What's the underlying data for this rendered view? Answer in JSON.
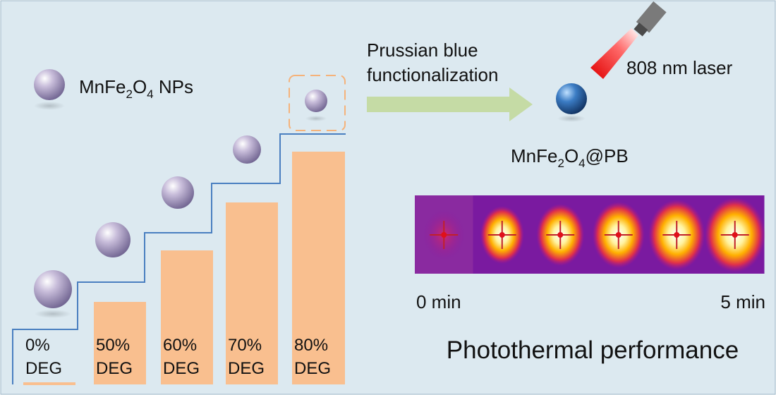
{
  "legend": {
    "parts": [
      "MnFe",
      "2",
      "O",
      "4",
      " NPs"
    ]
  },
  "arrow": {
    "lines": [
      "Prussian blue",
      "functionalization"
    ]
  },
  "laser": {
    "label": "808 nm laser"
  },
  "product": {
    "parts": [
      "MnFe",
      "2",
      "O",
      "4",
      "@PB"
    ]
  },
  "bars": [
    {
      "lines": [
        "0%",
        "DEG"
      ]
    },
    {
      "lines": [
        "50%",
        "DEG"
      ]
    },
    {
      "lines": [
        "60%",
        "DEG"
      ]
    },
    {
      "lines": [
        "70%",
        "DEG"
      ]
    },
    {
      "lines": [
        "80%",
        "DEG"
      ]
    }
  ],
  "thermal": {
    "start": "0 min",
    "end": "5 min",
    "caption": "Photothermal performance"
  }
}
